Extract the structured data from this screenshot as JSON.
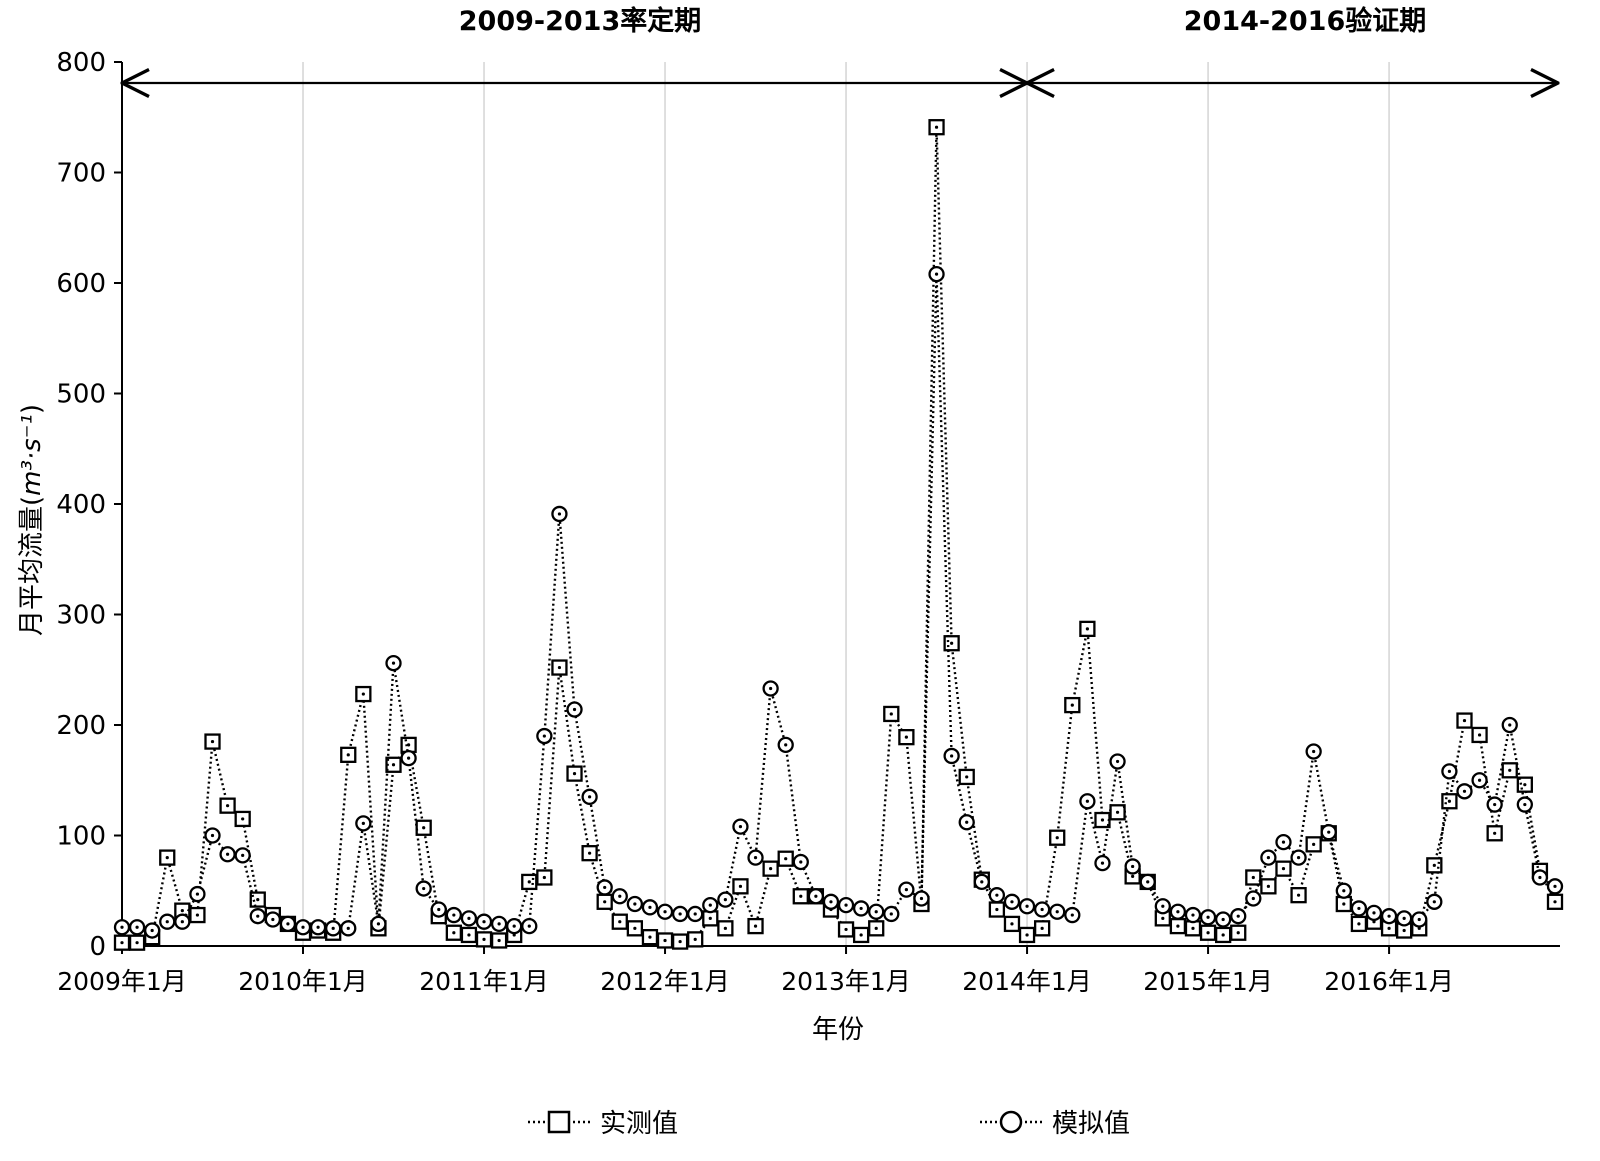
{
  "chart_data": {
    "type": "line",
    "xlabel": "年份",
    "ylabel_main": "月平均流量(",
    "ylabel_unit": "m³·s⁻¹",
    "ylabel_close": ")",
    "ylim": [
      0,
      800
    ],
    "yticks": [
      0,
      100,
      200,
      300,
      400,
      500,
      600,
      700,
      800
    ],
    "x_start_month": "2009年1月",
    "x_tick_labels": [
      "2009年1月",
      "2010年1月",
      "2011年1月",
      "2012年1月",
      "2013年1月",
      "2014年1月",
      "2015年1月",
      "2016年1月"
    ],
    "grid_vertical": true,
    "periods": [
      {
        "label": "2009-2013率定期",
        "from": "2009年1月",
        "to": "2014年1月"
      },
      {
        "label": "2014-2016验证期",
        "from": "2014年1月",
        "to": "2016年12月"
      }
    ],
    "legend_position": "bottom",
    "series": [
      {
        "name": "实测值",
        "marker": "square",
        "values": [
          3,
          3,
          8,
          80,
          32,
          28,
          185,
          127,
          115,
          42,
          28,
          20,
          12,
          14,
          12,
          173,
          228,
          16,
          164,
          182,
          107,
          27,
          12,
          10,
          6,
          5,
          10,
          58,
          62,
          252,
          156,
          84,
          40,
          22,
          16,
          8,
          5,
          4,
          6,
          25,
          16,
          54,
          18,
          70,
          79,
          45,
          45,
          33,
          15,
          10,
          16,
          210,
          189,
          38,
          741,
          274,
          153,
          60,
          33,
          20,
          10,
          16,
          98,
          218,
          287,
          114,
          121,
          63,
          58,
          25,
          18,
          16,
          12,
          10,
          12,
          62,
          54,
          70,
          46,
          92,
          102,
          38,
          20,
          22,
          16,
          14,
          16,
          73,
          131,
          204,
          191,
          102,
          159,
          146,
          68,
          40
        ]
      },
      {
        "name": "模拟值",
        "marker": "circle",
        "values": [
          17,
          17,
          14,
          22,
          22,
          47,
          100,
          83,
          82,
          27,
          24,
          20,
          17,
          17,
          16,
          16,
          111,
          20,
          256,
          170,
          52,
          33,
          28,
          25,
          22,
          20,
          18,
          18,
          190,
          391,
          214,
          135,
          53,
          45,
          38,
          35,
          31,
          29,
          29,
          37,
          42,
          108,
          80,
          233,
          182,
          76,
          45,
          40,
          37,
          34,
          31,
          29,
          51,
          43,
          608,
          172,
          112,
          58,
          46,
          40,
          36,
          33,
          31,
          28,
          131,
          75,
          167,
          72,
          58,
          36,
          31,
          28,
          26,
          24,
          27,
          43,
          80,
          94,
          80,
          176,
          103,
          50,
          34,
          30,
          27,
          25,
          24,
          40,
          158,
          140,
          150,
          128,
          200,
          128,
          62,
          54
        ]
      }
    ]
  }
}
